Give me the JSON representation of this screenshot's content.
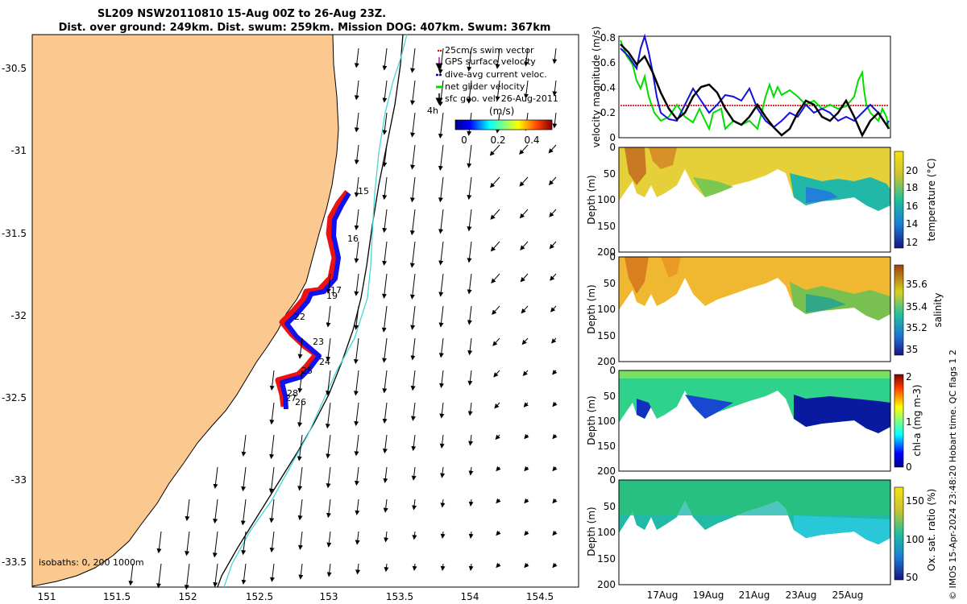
{
  "title": {
    "line1": "SL209 NSW20110810 15-Aug 00Z to 26-Aug 23Z.",
    "line2": "Dist. over ground: 249km. Dist. swum: 259km. Mission DOG: 407km. Swum: 367km"
  },
  "map": {
    "lon_ticks": [
      "151",
      "151.5",
      "152",
      "152.5",
      "153",
      "153.5",
      "154",
      "154.5"
    ],
    "lat_ticks": [
      "-30.5",
      "-31",
      "-31.5",
      "-32",
      "-32.5",
      "-33",
      "-33.5"
    ],
    "isobaths_label": "isobaths: 0, 200  1000m",
    "legend": [
      {
        "label": "25cm/s swim vector",
        "color": "#e00000"
      },
      {
        "label": "GPS surface velocity",
        "color": "#cc00cc"
      },
      {
        "label": "dive-avg current veloc.",
        "color": "#0000ee"
      },
      {
        "label": "net glider velocity",
        "color": "#00dd00"
      },
      {
        "label": "sfc geo. vel. 26-Aug-2011",
        "color": "#000000"
      }
    ],
    "legend_extra": "4h",
    "colorbar": {
      "label": "(m/s)",
      "ticks": [
        "0",
        "0.2",
        "0.4"
      ]
    },
    "day_labels": [
      "15",
      "16",
      "17",
      "19",
      "22",
      "23",
      "24",
      "25",
      "28",
      "27",
      "26"
    ],
    "colors": {
      "land": "#fbc890",
      "coast": "#000000",
      "isobath_200": "#47d6d6",
      "isobath_1000": "#000000",
      "track_red": "#ee1111",
      "track_blue": "#1111ee"
    }
  },
  "velocity_panel": {
    "ylabel": "velocity magnitude (m/s)",
    "yticks": [
      "0",
      "0.2",
      "0.4",
      "0.6",
      "0.8"
    ]
  },
  "sections": [
    {
      "ylabel": "Depth (m)",
      "yticks": [
        "0",
        "50",
        "100",
        "150",
        "200"
      ],
      "cbar_label": "temperature (°C)",
      "cbar_ticks": [
        "20",
        "18",
        "16",
        "14",
        "12"
      ]
    },
    {
      "ylabel": "Depth (m)",
      "yticks": [
        "0",
        "50",
        "100",
        "150",
        "200"
      ],
      "cbar_label": "salinity",
      "cbar_ticks": [
        "35.6",
        "35.4",
        "35.2",
        "35"
      ]
    },
    {
      "ylabel": "Depth (m)",
      "yticks": [
        "0",
        "50",
        "100",
        "150",
        "200"
      ],
      "cbar_label": "chl-a (mg m-3)",
      "cbar_ticks": [
        "2",
        "1",
        "0"
      ]
    },
    {
      "ylabel": "Depth (m)",
      "yticks": [
        "0",
        "50",
        "100",
        "150",
        "200"
      ],
      "cbar_label": "Ox. sat. ratio (%)",
      "cbar_ticks": [
        "150",
        "100",
        "50"
      ]
    }
  ],
  "time_ticks": [
    "17Aug",
    "19Aug",
    "21Aug",
    "23Aug",
    "25Aug"
  ],
  "side_label": "© IMOS 15-Apr-2024 23:48:20 Hobart time. QC flags 1  2"
}
